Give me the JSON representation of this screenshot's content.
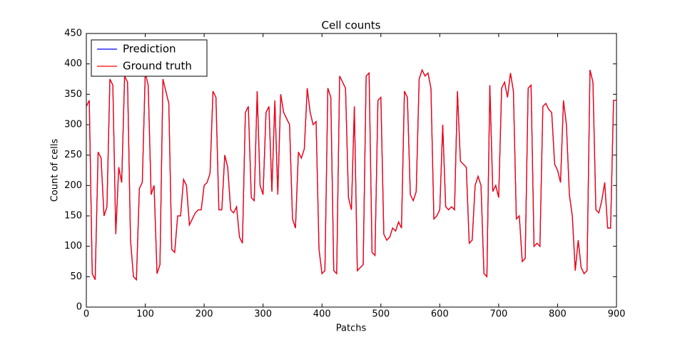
{
  "chart_data": {
    "type": "line",
    "title": "Cell counts",
    "x_label": "Patchs",
    "y_label": "Count of cells",
    "legend": "upper left",
    "xlim": [
      0,
      900
    ],
    "xticks": [
      0,
      100,
      200,
      300,
      400,
      500,
      600,
      700,
      800,
      900
    ],
    "ylim": [
      0,
      450
    ],
    "yticks": [
      0,
      50,
      100,
      150,
      200,
      250,
      300,
      350,
      400,
      450
    ],
    "x": [
      0,
      5,
      10,
      15,
      20,
      25,
      30,
      35,
      40,
      45,
      50,
      55,
      60,
      65,
      70,
      75,
      80,
      85,
      90,
      95,
      100,
      105,
      110,
      115,
      120,
      125,
      130,
      135,
      140,
      145,
      150,
      155,
      160,
      165,
      170,
      175,
      180,
      185,
      190,
      195,
      200,
      205,
      210,
      215,
      220,
      225,
      230,
      235,
      240,
      245,
      250,
      255,
      260,
      265,
      270,
      275,
      280,
      285,
      290,
      295,
      300,
      305,
      310,
      315,
      320,
      325,
      330,
      335,
      340,
      345,
      350,
      355,
      360,
      365,
      370,
      375,
      380,
      385,
      390,
      395,
      400,
      405,
      410,
      415,
      420,
      425,
      430,
      435,
      440,
      445,
      450,
      455,
      460,
      465,
      470,
      475,
      480,
      485,
      490,
      495,
      500,
      505,
      510,
      515,
      520,
      525,
      530,
      535,
      540,
      545,
      550,
      555,
      560,
      565,
      570,
      575,
      580,
      585,
      590,
      595,
      600,
      605,
      610,
      615,
      620,
      625,
      630,
      635,
      640,
      645,
      650,
      655,
      660,
      665,
      670,
      675,
      680,
      685,
      690,
      695,
      700,
      705,
      710,
      715,
      720,
      725,
      730,
      735,
      740,
      745,
      750,
      755,
      760,
      765,
      770,
      775,
      780,
      785,
      790,
      795,
      800,
      805,
      810,
      815,
      820,
      825,
      830,
      835,
      840,
      845,
      850,
      855,
      860,
      865,
      870,
      875,
      880,
      885,
      890,
      895,
      900
    ],
    "series": [
      {
        "name": "Prediction",
        "color": "#0000ff",
        "values": [
          330,
          340,
          55,
          45,
          255,
          245,
          150,
          165,
          375,
          365,
          120,
          230,
          205,
          380,
          370,
          110,
          50,
          45,
          195,
          205,
          385,
          365,
          185,
          200,
          55,
          70,
          375,
          355,
          335,
          95,
          90,
          150,
          150,
          210,
          200,
          135,
          145,
          155,
          160,
          160,
          200,
          205,
          220,
          355,
          345,
          160,
          160,
          250,
          230,
          160,
          155,
          165,
          115,
          105,
          320,
          330,
          180,
          175,
          355,
          200,
          185,
          320,
          330,
          190,
          340,
          185,
          350,
          320,
          310,
          300,
          145,
          130,
          255,
          245,
          260,
          360,
          320,
          300,
          305,
          95,
          55,
          60,
          360,
          345,
          60,
          55,
          380,
          370,
          360,
          180,
          160,
          330,
          60,
          65,
          70,
          380,
          385,
          90,
          85,
          340,
          345,
          120,
          110,
          115,
          130,
          125,
          140,
          130,
          355,
          345,
          185,
          175,
          190,
          375,
          390,
          380,
          385,
          360,
          145,
          150,
          160,
          300,
          165,
          160,
          165,
          160,
          355,
          240,
          235,
          230,
          105,
          110,
          200,
          215,
          200,
          55,
          50,
          365,
          190,
          200,
          180,
          360,
          370,
          345,
          385,
          355,
          145,
          150,
          75,
          80,
          360,
          365,
          100,
          105,
          100,
          330,
          335,
          325,
          320,
          235,
          225,
          205,
          340,
          300,
          185,
          150,
          60,
          110,
          65,
          55,
          60,
          390,
          370,
          160,
          155,
          175,
          205,
          130,
          130,
          340,
          340
        ]
      },
      {
        "name": "Ground truth",
        "color": "#ff0000",
        "values": [
          330,
          340,
          55,
          45,
          255,
          245,
          150,
          165,
          375,
          365,
          120,
          230,
          205,
          380,
          370,
          110,
          50,
          45,
          195,
          205,
          385,
          365,
          185,
          200,
          55,
          70,
          375,
          355,
          335,
          95,
          90,
          150,
          150,
          210,
          200,
          135,
          145,
          155,
          160,
          160,
          200,
          205,
          220,
          355,
          345,
          160,
          160,
          250,
          230,
          160,
          155,
          165,
          115,
          105,
          320,
          330,
          180,
          175,
          355,
          200,
          185,
          320,
          330,
          190,
          340,
          185,
          350,
          320,
          310,
          300,
          145,
          130,
          255,
          245,
          260,
          360,
          320,
          300,
          305,
          95,
          55,
          60,
          360,
          345,
          60,
          55,
          380,
          370,
          360,
          180,
          160,
          330,
          60,
          65,
          70,
          380,
          385,
          90,
          85,
          340,
          345,
          120,
          110,
          115,
          130,
          125,
          140,
          130,
          355,
          345,
          185,
          175,
          190,
          375,
          390,
          380,
          385,
          360,
          145,
          150,
          160,
          300,
          165,
          160,
          165,
          160,
          355,
          240,
          235,
          230,
          105,
          110,
          200,
          215,
          200,
          55,
          50,
          365,
          190,
          200,
          180,
          360,
          370,
          345,
          385,
          355,
          145,
          150,
          75,
          80,
          360,
          365,
          100,
          105,
          100,
          330,
          335,
          325,
          320,
          235,
          225,
          205,
          340,
          300,
          185,
          150,
          60,
          110,
          65,
          55,
          60,
          390,
          370,
          160,
          155,
          175,
          205,
          130,
          130,
          340,
          340
        ]
      }
    ]
  }
}
